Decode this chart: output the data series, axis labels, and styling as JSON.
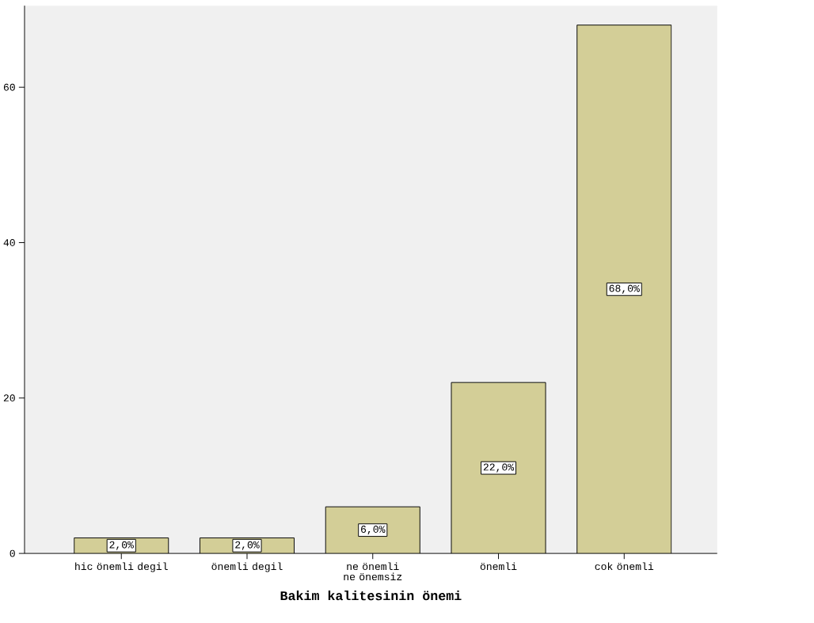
{
  "chart_data": {
    "type": "bar",
    "xlabel": "Bakim kalitesinin önemi",
    "categories": [
      "hic önemli degil",
      "önemli degil",
      "ne önemli ne önemsiz",
      "önemli",
      "cok önemli"
    ],
    "values": [
      2,
      2,
      6,
      22,
      68
    ],
    "value_labels": [
      "2,0%",
      "2,0%",
      "6,0%",
      "22,0%",
      "68,0%"
    ],
    "color": "#d3ce97",
    "ylim": [
      0,
      70.5
    ],
    "yticks": [
      0,
      20,
      40,
      60
    ],
    "grid": false
  }
}
